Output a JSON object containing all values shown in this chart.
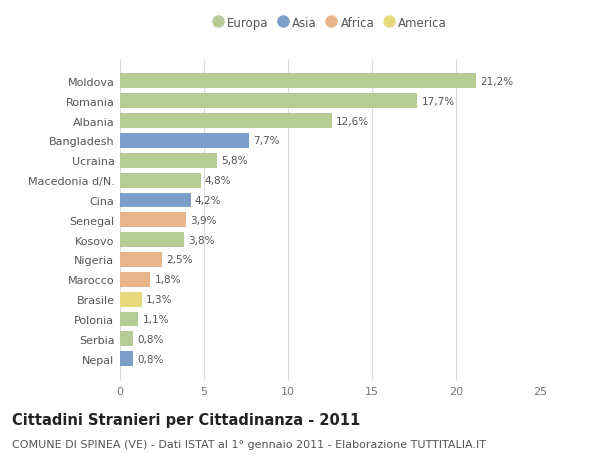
{
  "countries": [
    "Moldova",
    "Romania",
    "Albania",
    "Bangladesh",
    "Ucraina",
    "Macedonia d/N.",
    "Cina",
    "Senegal",
    "Kosovo",
    "Nigeria",
    "Marocco",
    "Brasile",
    "Polonia",
    "Serbia",
    "Nepal"
  ],
  "values": [
    21.2,
    17.7,
    12.6,
    7.7,
    5.8,
    4.8,
    4.2,
    3.9,
    3.8,
    2.5,
    1.8,
    1.3,
    1.1,
    0.8,
    0.8
  ],
  "labels": [
    "21,2%",
    "17,7%",
    "12,6%",
    "7,7%",
    "5,8%",
    "4,8%",
    "4,2%",
    "3,9%",
    "3,8%",
    "2,5%",
    "1,8%",
    "1,3%",
    "1,1%",
    "0,8%",
    "0,8%"
  ],
  "continents": [
    "Europa",
    "Europa",
    "Europa",
    "Asia",
    "Europa",
    "Europa",
    "Asia",
    "Africa",
    "Europa",
    "Africa",
    "Africa",
    "America",
    "Europa",
    "Europa",
    "Asia"
  ],
  "colors": {
    "Europa": "#b5cc96",
    "Asia": "#7b9fc9",
    "Africa": "#e8b48a",
    "America": "#e8d87c"
  },
  "legend_order": [
    "Europa",
    "Asia",
    "Africa",
    "America"
  ],
  "title": "Cittadini Stranieri per Cittadinanza - 2011",
  "subtitle": "COMUNE DI SPINEA (VE) - Dati ISTAT al 1° gennaio 2011 - Elaborazione TUTTITALIA.IT",
  "xlim": [
    0,
    25
  ],
  "xticks": [
    0,
    5,
    10,
    15,
    20,
    25
  ],
  "background_color": "#ffffff",
  "plot_bg_color": "#ffffff",
  "grid_color": "#dddddd",
  "title_fontsize": 10.5,
  "subtitle_fontsize": 8,
  "label_fontsize": 7.5,
  "tick_fontsize": 8,
  "legend_fontsize": 8.5
}
